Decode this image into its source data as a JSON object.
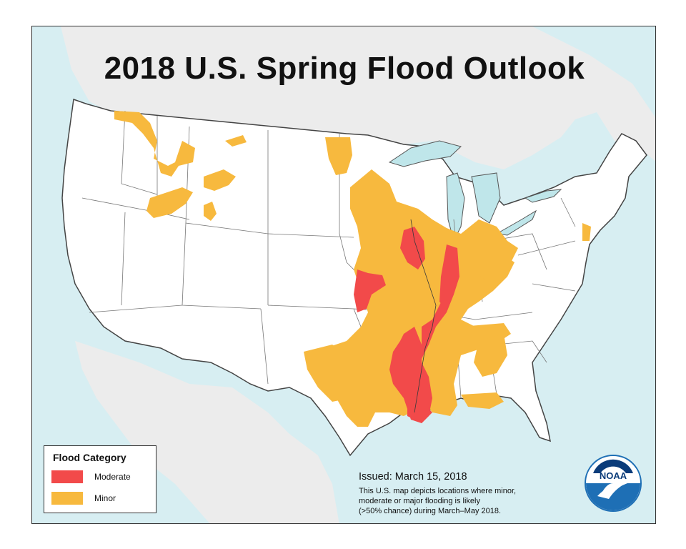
{
  "title": "2018 U.S. Spring Flood Outlook",
  "legend": {
    "title": "Flood Category",
    "items": [
      {
        "label": "Moderate",
        "color": "#f24a4a"
      },
      {
        "label": "Minor",
        "color": "#f7b93e"
      }
    ]
  },
  "issued": "Issued:  March 15, 2018",
  "note_lines": [
    "This U.S. map depicts locations where minor,",
    "moderate or major flooding is likely",
    "(>50% chance) during March–May  2018."
  ],
  "logo": {
    "text": "NOAA",
    "icon": "noaa-logo-icon"
  },
  "colors": {
    "ocean": "#d7eef2",
    "land": "#ffffff",
    "neighbor_land": "#ececec",
    "lakes": "#bfe6ea",
    "border": "#444444",
    "moderate": "#f24a4a",
    "minor": "#f7b93e"
  }
}
